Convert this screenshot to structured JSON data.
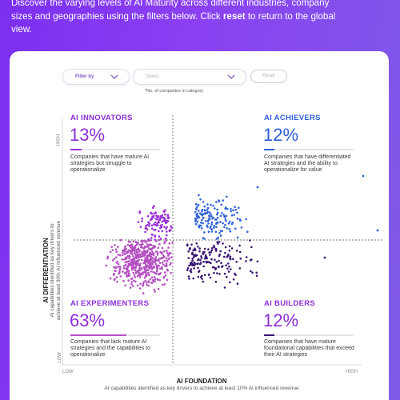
{
  "intro": {
    "line1": "Discover the varying levels of AI Maturity across different industries, company",
    "line2_pre": "sizes and geographies using the filters below. Click ",
    "line2_bold": "reset",
    "line2_post": " to return to the global",
    "line3": "view."
  },
  "filters": {
    "filter_by_label": "Filter by",
    "select_placeholder": "Select",
    "reset_label": "Reset",
    "note": "*No. of companies in category"
  },
  "axes": {
    "y_high": "HIGH",
    "y_low": "LOW",
    "x_low": "LOW",
    "x_high": "HIGH",
    "y_title": "AI DIFFERENTIATION",
    "y_subtitle_1": "AI capabilities identified as key drivers to",
    "y_subtitle_2": "achieve at least 30% AI influenced revenue",
    "x_title": "AI FOUNDATION",
    "x_subtitle": "AI capabilities identified as key drivers to achieve at least 10% AI influenced revenue"
  },
  "quadrants": {
    "innovators": {
      "title": "AI INNOVATORS",
      "pct": "13%",
      "percent_value": 13,
      "desc": "Companies that have mature AI strategies but struggle to operationalize"
    },
    "achievers": {
      "title": "AI ACHIEVERS",
      "pct": "12%",
      "percent_value": 12,
      "desc": "Companies that have differentiated AI strategies and the ability to operationalize for value"
    },
    "experimenters": {
      "title": "AI EXPERIMENTERS",
      "pct": "63%",
      "percent_value": 63,
      "desc": "Companies that lack mature AI strategies and the capabilities to operationalize"
    },
    "builders": {
      "title": "AI BUILDERS",
      "pct": "12%",
      "percent_value": 12,
      "desc": "Companies that have mature foundational capabilities that exceed their AI strategies"
    }
  },
  "colors": {
    "experimenters": "#b44fc0",
    "innovators": "#9a2fd8",
    "achievers": "#2f62d8",
    "builders": "#3a1672"
  }
}
